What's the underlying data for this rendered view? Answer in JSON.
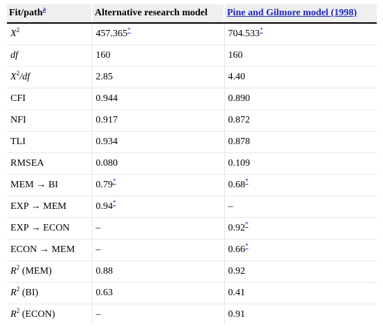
{
  "header": {
    "col1_label": "Fit/path",
    "col1_note": "a",
    "col2_label": "Alternative research model",
    "col3_label": "Pine and Gilmore model (1998)"
  },
  "rows": [
    {
      "metric": "X",
      "metric_sup": "2",
      "alt": "457.365",
      "alt_note": "*",
      "pg": "704.533",
      "pg_note": "*"
    },
    {
      "metric": "df",
      "alt": "160",
      "pg": "160"
    },
    {
      "metric": "X",
      "metric_sup": "2",
      "metric_suffix": "/df",
      "alt": "2.85",
      "pg": "4.40"
    },
    {
      "metric": "CFI",
      "alt": "0.944",
      "pg": "0.890"
    },
    {
      "metric": "NFI",
      "alt": "0.917",
      "pg": "0.872"
    },
    {
      "metric": "TLI",
      "alt": "0.934",
      "pg": "0.878"
    },
    {
      "metric": "RMSEA",
      "alt": "0.080",
      "pg": "0.109"
    },
    {
      "metric": "MEM → BI",
      "alt": "0.79",
      "alt_note": "*",
      "pg": "0.68",
      "pg_note": "*"
    },
    {
      "metric": "EXP → MEM",
      "alt": "0.94",
      "alt_note": "*",
      "pg": "–"
    },
    {
      "metric": "EXP → ECON",
      "alt": "–",
      "pg": "0.92",
      "pg_note": "*"
    },
    {
      "metric": "ECON → MEM",
      "alt": "–",
      "pg": "0.66",
      "pg_note": "*"
    },
    {
      "metric": "R",
      "metric_sup": "2",
      "metric_suffix": " (MEM)",
      "alt": "0.88",
      "pg": "0.92"
    },
    {
      "metric": "R",
      "metric_sup": "2",
      "metric_suffix": " (BI)",
      "alt": "0.63",
      "pg": "0.41"
    },
    {
      "metric": "R",
      "metric_sup": "2",
      "metric_suffix": " (ECON)",
      "alt": "–",
      "pg": "0.91"
    }
  ],
  "colors": {
    "link": "#1f27c0",
    "header_bg": "#efefef",
    "grid": "#e6e6e6"
  }
}
